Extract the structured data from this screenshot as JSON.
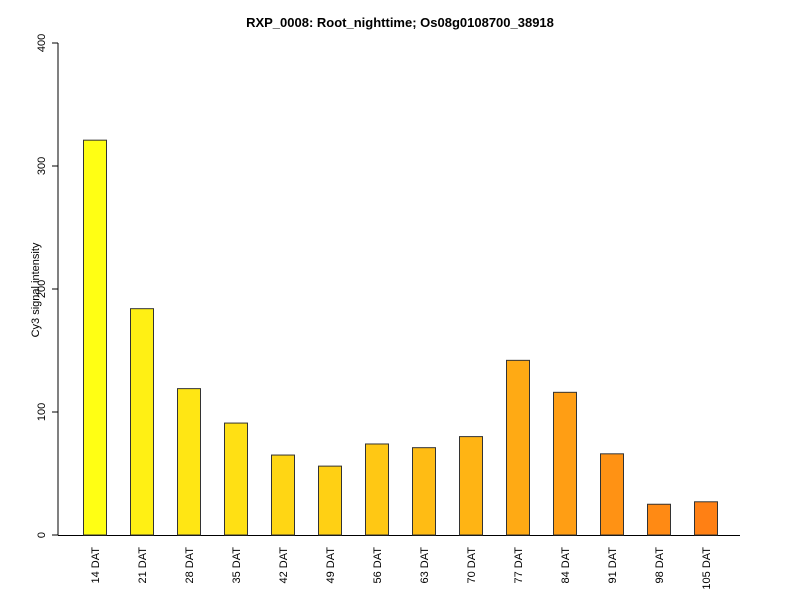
{
  "chart_data": {
    "type": "bar",
    "title": "RXP_0008: Root_nighttime; Os08g0108700_38918",
    "xlabel": "",
    "ylabel": "Cy3 signal intensity",
    "ylim": [
      0,
      400
    ],
    "yticks": [
      0,
      100,
      200,
      300,
      400
    ],
    "grid": false,
    "categories": [
      "14 DAT",
      "21 DAT",
      "28 DAT",
      "35 DAT",
      "42 DAT",
      "49 DAT",
      "56 DAT",
      "63 DAT",
      "70 DAT",
      "77 DAT",
      "84 DAT",
      "91 DAT",
      "98 DAT",
      "105 DAT"
    ],
    "values": [
      321,
      184,
      119,
      91,
      65,
      56,
      74,
      71,
      80,
      142,
      116,
      66,
      25,
      27
    ],
    "colors": [
      "#ffff14",
      "#fff014",
      "#ffe614",
      "#ffe014",
      "#ffd614",
      "#ffd014",
      "#ffc814",
      "#ffbc14",
      "#ffb414",
      "#ffaa14",
      "#ff9e14",
      "#ff9214",
      "#ff8a14",
      "#ff8014"
    ]
  }
}
